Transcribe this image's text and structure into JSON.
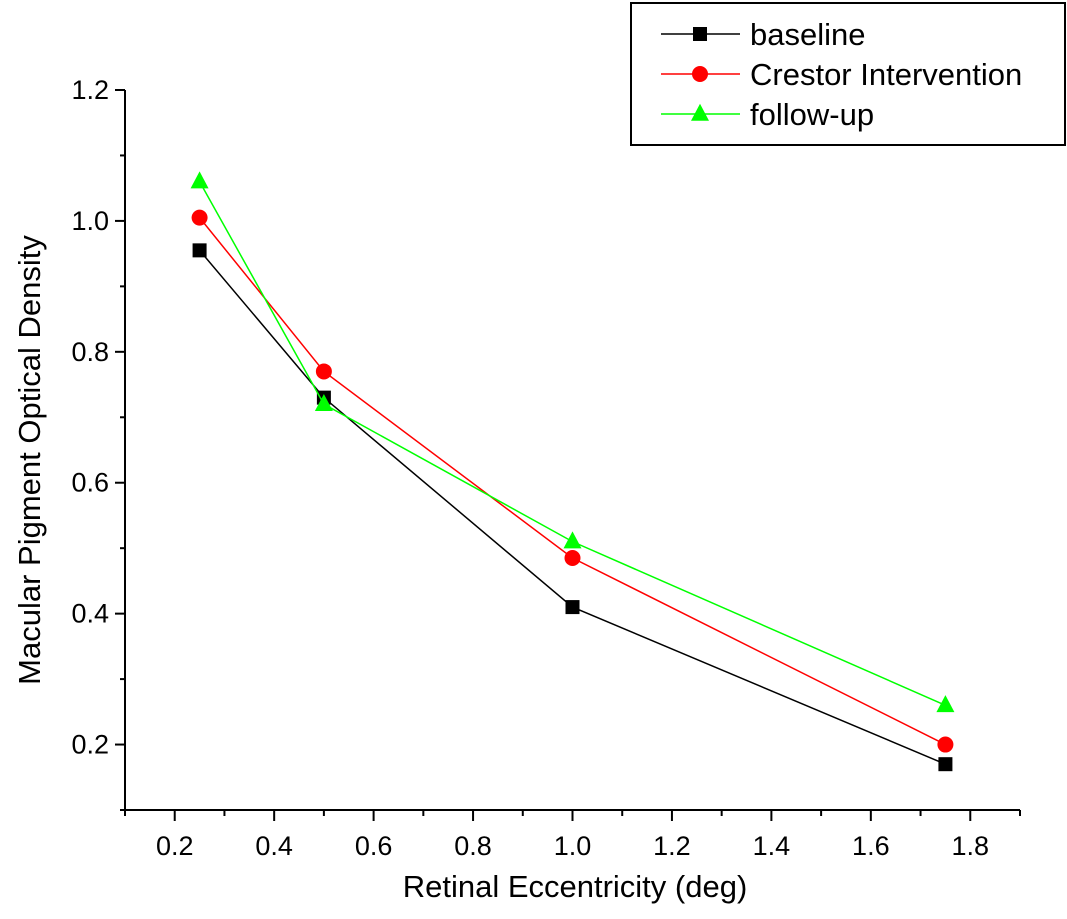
{
  "chart_data": {
    "type": "line",
    "xlabel": "Retinal Eccentricity (deg)",
    "ylabel": "Macular Pigment Optical Density",
    "xlim": [
      0.1,
      1.9
    ],
    "ylim": [
      0.1,
      1.2
    ],
    "x_ticks": [
      "0.2",
      "0.4",
      "0.6",
      "0.8",
      "1.0",
      "1.2",
      "1.4",
      "1.6",
      "1.8"
    ],
    "y_ticks": [
      "0.2",
      "0.4",
      "0.6",
      "0.8",
      "1.0",
      "1.2"
    ],
    "grid": false,
    "legend_position": "top-right",
    "series": [
      {
        "name": "baseline",
        "marker": "square",
        "color": "#000000",
        "x": [
          0.25,
          0.5,
          1.0,
          1.75
        ],
        "values": [
          0.955,
          0.73,
          0.41,
          0.17
        ]
      },
      {
        "name": "Crestor Intervention",
        "marker": "circle",
        "color": "#ff0000",
        "x": [
          0.25,
          0.5,
          1.0,
          1.75
        ],
        "values": [
          1.005,
          0.77,
          0.485,
          0.2
        ]
      },
      {
        "name": "follow-up",
        "marker": "triangle",
        "color": "#00ff00",
        "x": [
          0.25,
          0.5,
          1.0,
          1.75
        ],
        "values": [
          1.06,
          0.72,
          0.51,
          0.26
        ]
      }
    ]
  }
}
